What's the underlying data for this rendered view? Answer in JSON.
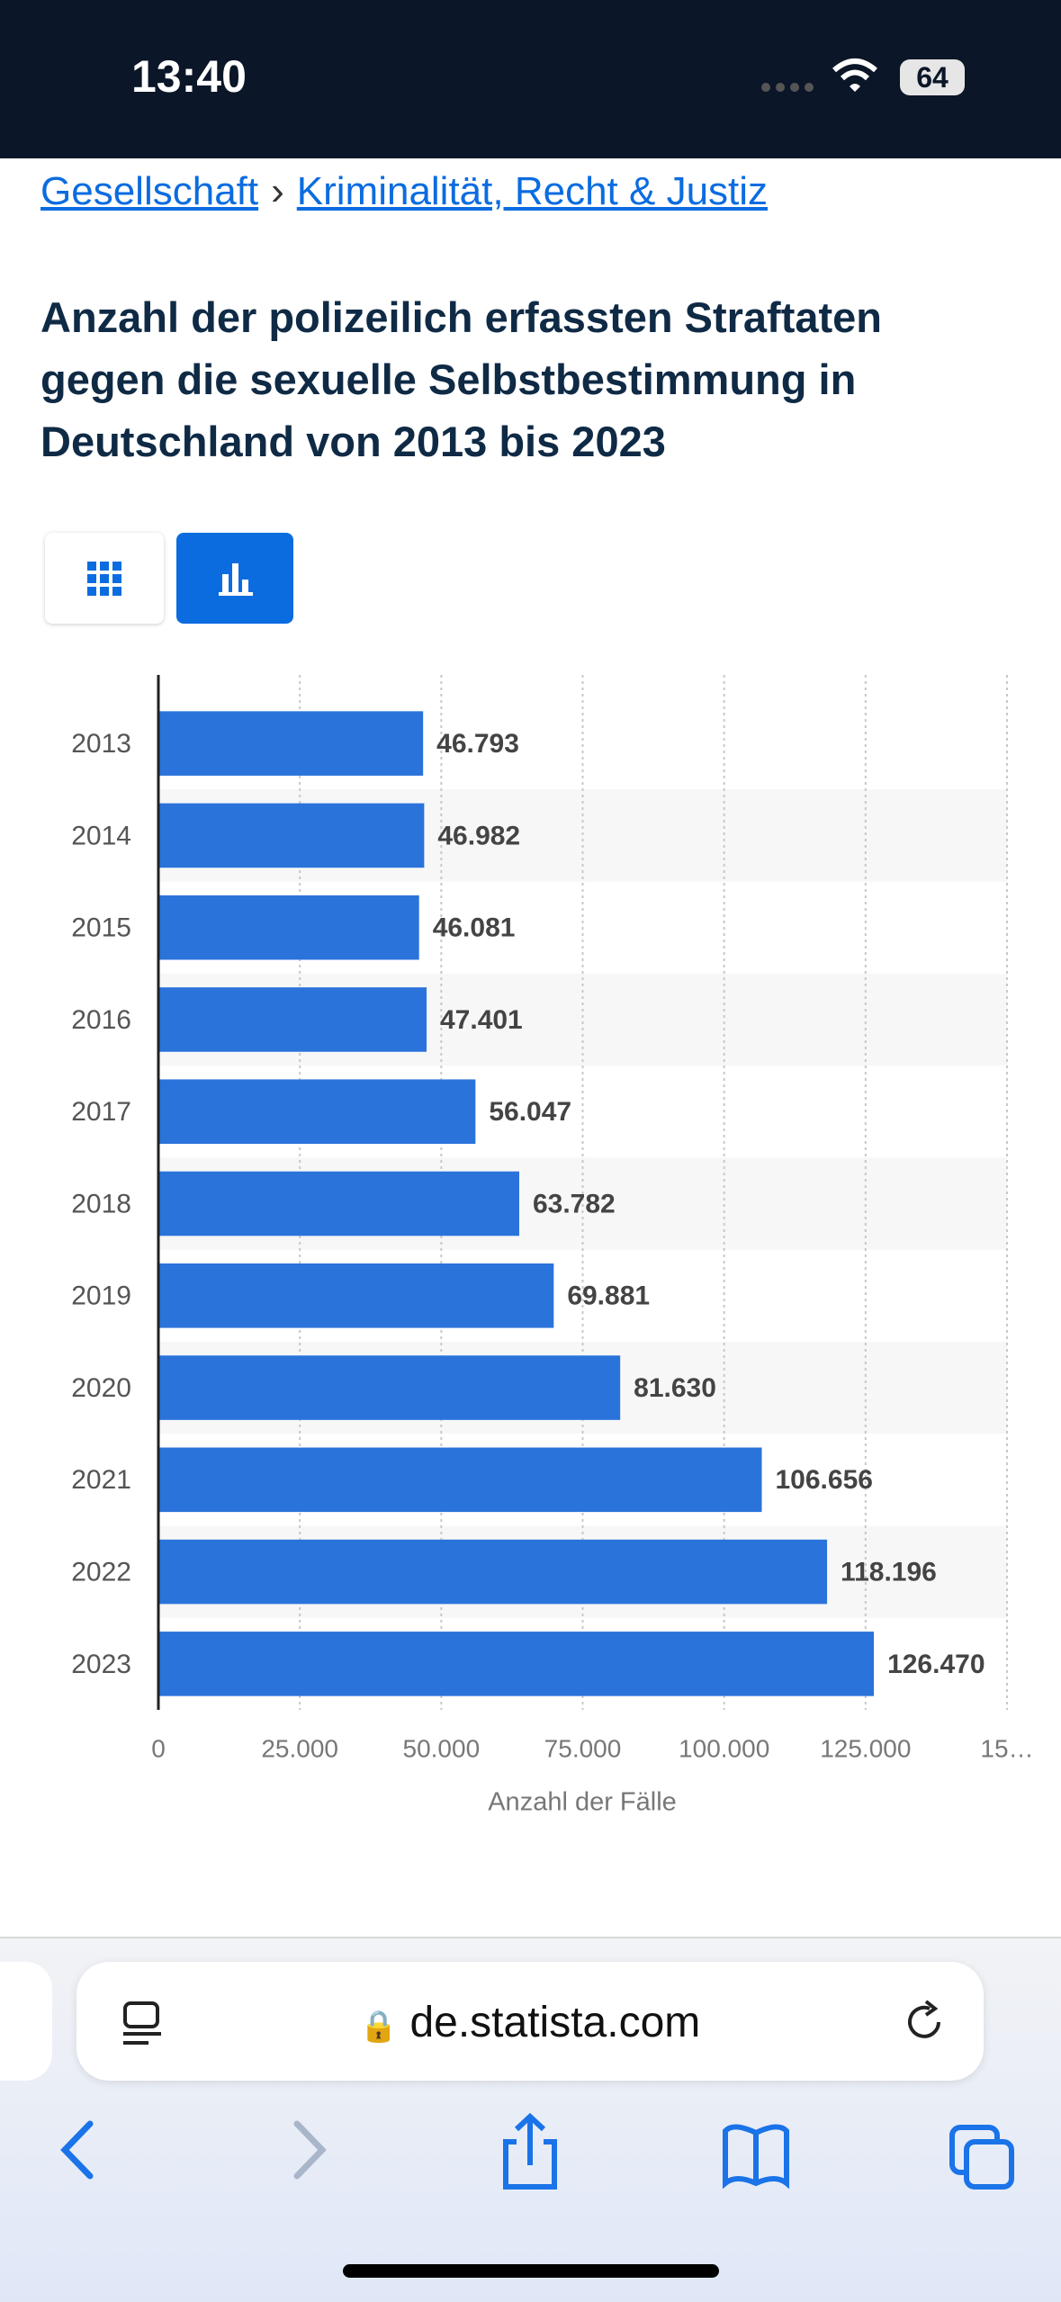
{
  "status_bar": {
    "time": "13:40",
    "battery": "64"
  },
  "breadcrumb": {
    "items": [
      "Gesellschaft",
      "Kriminalität, Recht & Justiz"
    ],
    "separator": "›"
  },
  "chart_data": {
    "type": "bar",
    "orientation": "horizontal",
    "title": "Anzahl der polizeilich erfassten Straftaten gegen die sexuelle Selbstbestimmung in Deutschland von 2013 bis 2023",
    "categories": [
      "2013",
      "2014",
      "2015",
      "2016",
      "2017",
      "2018",
      "2019",
      "2020",
      "2021",
      "2022",
      "2023"
    ],
    "values": [
      46793,
      46982,
      46081,
      47401,
      56047,
      63782,
      69881,
      81630,
      106656,
      118196,
      126470
    ],
    "value_labels": [
      "46.793",
      "46.982",
      "46.081",
      "47.401",
      "56.047",
      "63.782",
      "69.881",
      "81.630",
      "106.656",
      "118.196",
      "126.470"
    ],
    "color": "#2a73db",
    "xlabel": "Anzahl der Fälle",
    "xlim": [
      0,
      150000
    ],
    "xticks": [
      0,
      {
        "value": 25000,
        "label": "25.000"
      },
      {
        "value": 50000,
        "label": "50.000"
      },
      {
        "value": 75000,
        "label": "75.000"
      },
      {
        "value": 100000,
        "label": "100.000"
      },
      {
        "value": 125000,
        "label": "125.000"
      },
      {
        "value": 150000,
        "label": "15…"
      }
    ],
    "grid": true
  },
  "browser": {
    "url": "de.statista.com"
  }
}
